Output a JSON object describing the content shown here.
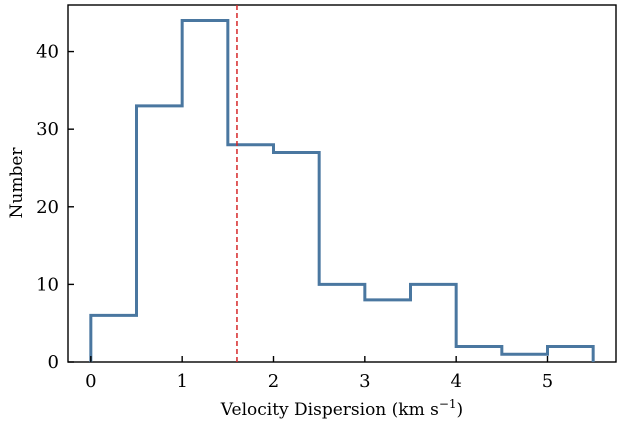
{
  "chart_data": {
    "type": "histogram",
    "bin_edges": [
      0,
      0.5,
      1.0,
      1.5,
      2.0,
      2.5,
      3.0,
      3.5,
      4.0,
      4.5,
      5.0,
      5.5
    ],
    "values": [
      6,
      33,
      44,
      28,
      27,
      10,
      8,
      10,
      2,
      1,
      2
    ],
    "vline": {
      "x": 1.6,
      "style": "dashed",
      "color": "#d62728"
    },
    "series_color": "#4a77a0",
    "xlabel": "Velocity Dispersion (km s",
    "xlabel_exponent": "−1",
    "xlabel_close": ")",
    "ylabel": "Number",
    "xlim": [
      -0.25,
      5.75
    ],
    "ylim": [
      0,
      46
    ],
    "xticks": [
      0,
      1,
      2,
      3,
      4,
      5
    ],
    "yticks": [
      0,
      10,
      20,
      30,
      40
    ],
    "grid": false
  }
}
